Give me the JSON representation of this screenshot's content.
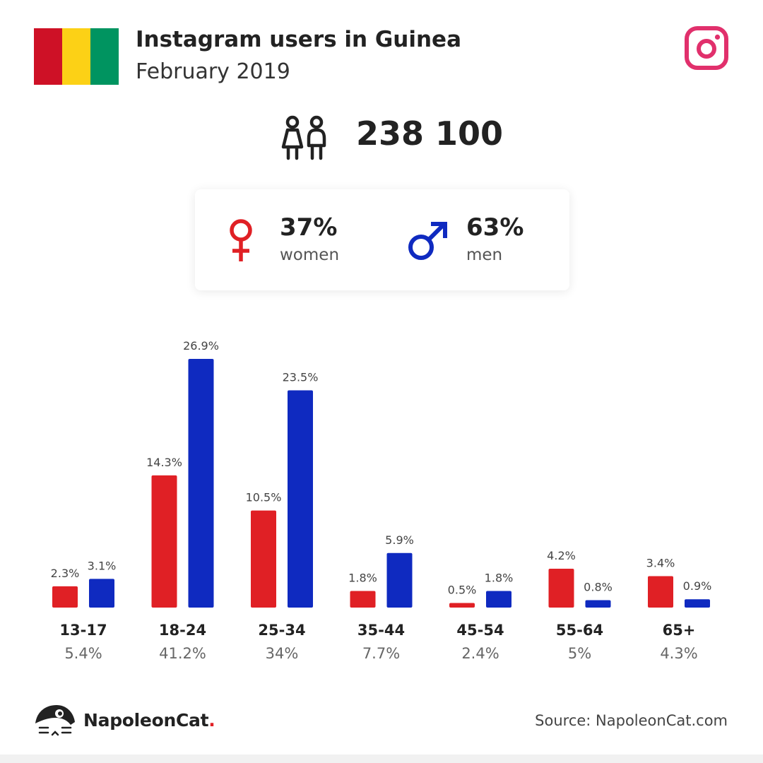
{
  "header": {
    "title": "Instagram users in Guinea",
    "subtitle": "February 2019",
    "flag_colors": [
      "#ce1126",
      "#fcd116",
      "#009460"
    ],
    "brand_icon": "instagram-icon",
    "brand_color": "#e1306c"
  },
  "total": {
    "icon": "users-icon",
    "value": "238 100"
  },
  "gender": {
    "women": {
      "icon": "female-icon",
      "percent": "37%",
      "label": "women",
      "color": "#e02025"
    },
    "men": {
      "icon": "male-icon",
      "percent": "63%",
      "label": "men",
      "color": "#0f2ac0"
    }
  },
  "chart_data": {
    "type": "bar",
    "categories": [
      "13-17",
      "18-24",
      "25-34",
      "35-44",
      "45-54",
      "55-64",
      "65+"
    ],
    "category_totals": [
      "5.4%",
      "41.2%",
      "34%",
      "7.7%",
      "2.4%",
      "5%",
      "4.3%"
    ],
    "series": [
      {
        "values": [
          2.3,
          14.3,
          10.5,
          1.8,
          0.5,
          4.2,
          3.4
        ],
        "labels": [
          "2.3%",
          "14.3%",
          "10.5%",
          "1.8%",
          "0.5%",
          "4.2%",
          "3.4%"
        ],
        "color": "#e02025"
      },
      {
        "values": [
          3.1,
          26.9,
          23.5,
          5.9,
          1.8,
          0.8,
          0.9
        ],
        "labels": [
          "3.1%",
          "26.9%",
          "23.5%",
          "5.9%",
          "1.8%",
          "0.8%",
          "0.9%"
        ],
        "color": "#0f2ac0"
      }
    ],
    "ylim": [
      0,
      26.9
    ],
    "grid": false,
    "title": "",
    "xlabel": "",
    "ylabel": ""
  },
  "footer": {
    "brand_name": "NapoleonCat",
    "brand_dot": ".",
    "logo_icon": "napoleoncat-logo-icon",
    "source": "Source: NapoleonCat.com"
  }
}
